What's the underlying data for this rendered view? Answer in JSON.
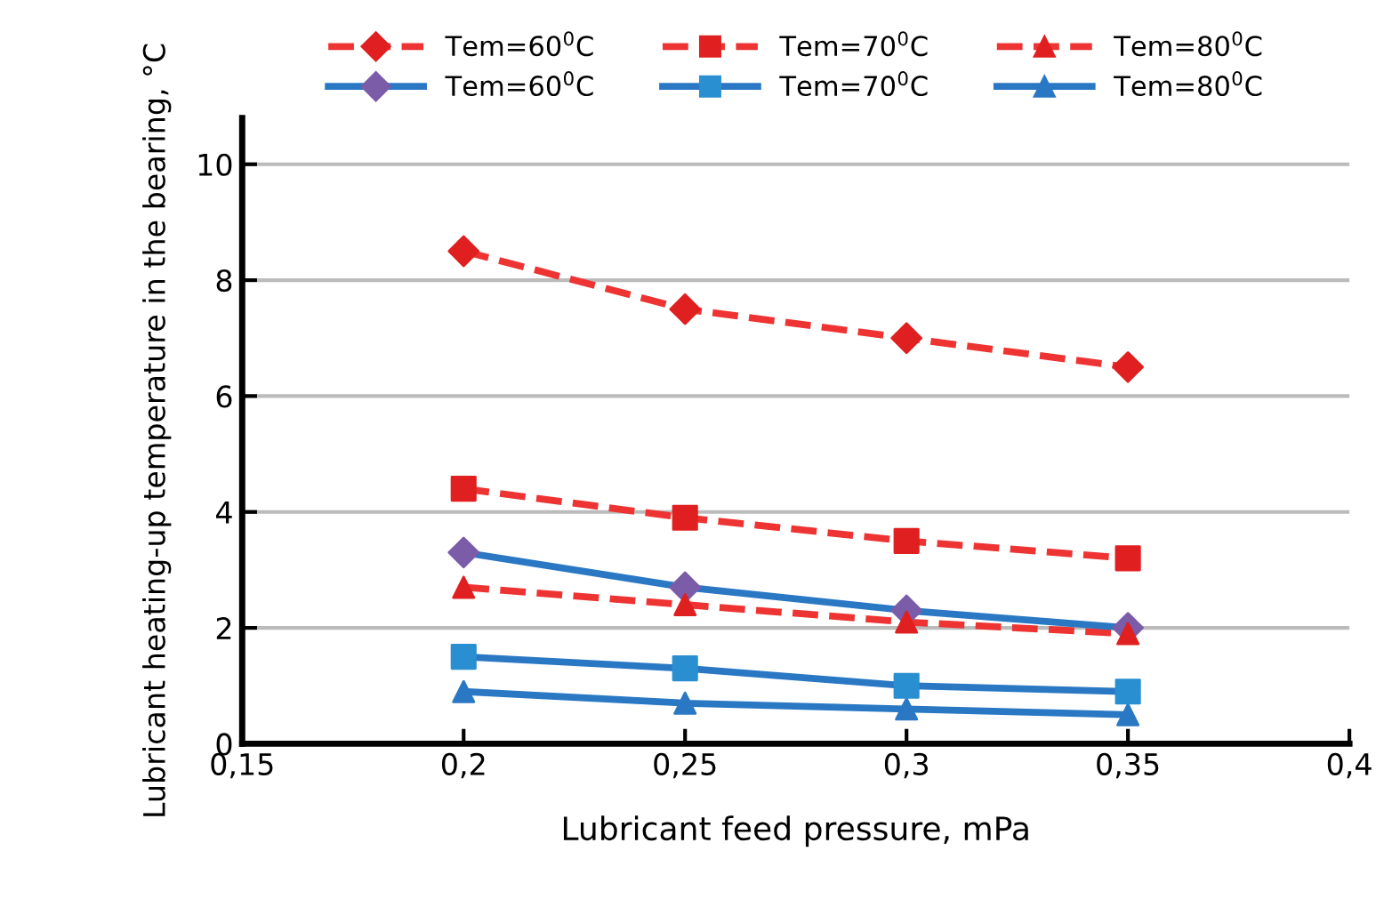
{
  "chart_data": {
    "type": "line",
    "xlabel": "Lubricant feed pressure, mPa",
    "ylabel": "Lubricant heating-up temperature in the bearing, °C",
    "x": [
      0.2,
      0.25,
      0.3,
      0.35
    ],
    "series": [
      {
        "name": "Tem=60$^{0}$C",
        "color": "#ee3333",
        "colors": [
          "#e02020",
          "#e02020",
          "#e02020",
          "#e02020"
        ],
        "marker": "diamond",
        "line_style": "dashed",
        "values": [
          8.5,
          7.5,
          7.0,
          6.5
        ]
      },
      {
        "name": "Tem=70$^{0}$C",
        "color": "#ee3333",
        "colors": [
          "#e02020",
          "#e02020",
          "#e02020",
          "#e02020"
        ],
        "marker": "square",
        "line_style": "dashed",
        "values": [
          4.4,
          3.9,
          3.5,
          3.2
        ]
      },
      {
        "name": "Tem=80$^{0}$C",
        "color": "#ee3333",
        "colors": [
          "#e02020",
          "#e02020",
          "#e02020",
          "#e02020"
        ],
        "marker": "triangle",
        "line_style": "dashed",
        "values": [
          2.7,
          2.4,
          2.1,
          1.9
        ]
      },
      {
        "name": "Tem=60$^{0}$C",
        "color": "#2a78c4",
        "colors": [
          "#7a5ca8",
          "#7a5ca8",
          "#7a5ca8",
          "#7a5ca8"
        ],
        "marker": "diamond",
        "line_style": "solid",
        "values": [
          3.3,
          2.7,
          2.3,
          2.0
        ]
      },
      {
        "name": "Tem=70$^{0}$C",
        "color": "#2a78c4",
        "colors": [
          "#2a8fd0",
          "#2a8fd0",
          "#2a8fd0",
          "#2a8fd0"
        ],
        "marker": "square",
        "line_style": "solid",
        "values": [
          1.5,
          1.3,
          1.0,
          0.9
        ]
      },
      {
        "name": "Tem=80$^{0}$C",
        "color": "#2a78c4",
        "colors": [
          "#2a78c4",
          "#2a78c4",
          "#2a78c4",
          "#2a78c4"
        ],
        "marker": "triangle",
        "line_style": "solid",
        "values": [
          0.9,
          0.7,
          0.6,
          0.5
        ]
      }
    ],
    "xlim": [
      0.15,
      0.4
    ],
    "xticks": [
      {
        "value": 0.15,
        "label": "0,15"
      },
      {
        "value": 0.2,
        "label": "0,2"
      },
      {
        "value": 0.25,
        "label": "0,25"
      },
      {
        "value": 0.3,
        "label": "0,3"
      },
      {
        "value": 0.35,
        "label": "0,35"
      },
      {
        "value": 0.4,
        "label": "0,4"
      }
    ],
    "ylim": [
      0,
      10.8
    ],
    "yticks": [
      0,
      2,
      4,
      6,
      8,
      10
    ],
    "grid": "y",
    "legend": "top"
  }
}
